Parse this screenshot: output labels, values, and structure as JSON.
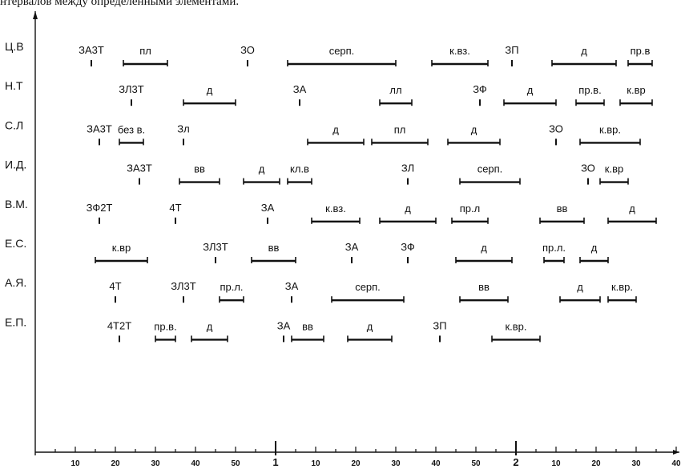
{
  "caption": "нтервалов между определенными элементами.",
  "chart_data": {
    "type": "timeline",
    "title": "",
    "xlabel": "",
    "ylabel": "",
    "x_ticks": [
      {
        "label": "10",
        "x": 10
      },
      {
        "label": "20",
        "x": 20
      },
      {
        "label": "30",
        "x": 30
      },
      {
        "label": "40",
        "x": 40
      },
      {
        "label": "50",
        "x": 50
      },
      {
        "label": "1",
        "x": 60
      },
      {
        "label": "10",
        "x": 70
      },
      {
        "label": "20",
        "x": 80
      },
      {
        "label": "30",
        "x": 90
      },
      {
        "label": "40",
        "x": 100
      },
      {
        "label": "50",
        "x": 110
      },
      {
        "label": "2",
        "x": 120
      },
      {
        "label": "10",
        "x": 130
      },
      {
        "label": "20",
        "x": 140
      },
      {
        "label": "30",
        "x": 150
      },
      {
        "label": "40",
        "x": 160
      }
    ],
    "xlim": [
      0,
      162
    ],
    "rows": [
      {
        "name": "Ц.В",
        "events": [
          {
            "label": "ЗА3Т",
            "x": 14
          },
          {
            "label": "пл",
            "start": 22,
            "end": 33
          },
          {
            "label": "ЗО",
            "x": 53
          },
          {
            "label": "серп.",
            "start": 63,
            "end": 90
          },
          {
            "label": "к.вз.",
            "start": 99,
            "end": 113
          },
          {
            "label": "ЗП",
            "x": 119
          },
          {
            "label": "д",
            "start": 129,
            "end": 145
          },
          {
            "label": "пр.в",
            "start": 148,
            "end": 154
          }
        ]
      },
      {
        "name": "Н.Т",
        "events": [
          {
            "label": "ЗЛ3Т",
            "x": 24
          },
          {
            "label": "д",
            "start": 37,
            "end": 50
          },
          {
            "label": "ЗА",
            "x": 66
          },
          {
            "label": "лл",
            "start": 86,
            "end": 94
          },
          {
            "label": "ЗФ",
            "x": 111
          },
          {
            "label": "д",
            "start": 117,
            "end": 130
          },
          {
            "label": "пр.в.",
            "start": 135,
            "end": 142
          },
          {
            "label": "к.вр",
            "start": 146,
            "end": 154
          }
        ]
      },
      {
        "name": "С.Л",
        "events": [
          {
            "label": "ЗА3Т",
            "x": 16
          },
          {
            "label": "без в.",
            "start": 21,
            "end": 27
          },
          {
            "label": "Зл",
            "x": 37
          },
          {
            "label": "д",
            "start": 68,
            "end": 82
          },
          {
            "label": "пл",
            "start": 84,
            "end": 98
          },
          {
            "label": "д",
            "start": 103,
            "end": 116
          },
          {
            "label": "ЗО",
            "x": 130
          },
          {
            "label": "к.вр.",
            "start": 136,
            "end": 151
          }
        ]
      },
      {
        "name": "И.Д.",
        "events": [
          {
            "label": "ЗА3Т",
            "x": 26
          },
          {
            "label": "вв",
            "start": 36,
            "end": 46
          },
          {
            "label": "д",
            "start": 52,
            "end": 61
          },
          {
            "label": "кл.в",
            "start": 63,
            "end": 69
          },
          {
            "label": "ЗЛ",
            "x": 93
          },
          {
            "label": "серп.",
            "start": 106,
            "end": 121
          },
          {
            "label": "ЗО",
            "x": 138
          },
          {
            "label": "к.вр",
            "start": 141,
            "end": 148
          }
        ]
      },
      {
        "name": "В.М.",
        "events": [
          {
            "label": "ЗФ2Т",
            "x": 16
          },
          {
            "label": "4Т",
            "x": 35
          },
          {
            "label": "ЗА",
            "x": 58
          },
          {
            "label": "к.вз.",
            "start": 69,
            "end": 81
          },
          {
            "label": "д",
            "start": 86,
            "end": 100
          },
          {
            "label": "пр.л",
            "start": 104,
            "end": 113
          },
          {
            "label": "вв",
            "start": 126,
            "end": 137
          },
          {
            "label": "д",
            "start": 143,
            "end": 155
          }
        ]
      },
      {
        "name": "Е.С.",
        "events": [
          {
            "label": "к.вр",
            "start": 15,
            "end": 28
          },
          {
            "label": "ЗЛ3Т",
            "x": 45
          },
          {
            "label": "вв",
            "start": 54,
            "end": 65
          },
          {
            "label": "ЗА",
            "x": 79
          },
          {
            "label": "ЗФ",
            "x": 93
          },
          {
            "label": "д",
            "start": 105,
            "end": 119
          },
          {
            "label": "пр.л.",
            "start": 127,
            "end": 132
          },
          {
            "label": "д",
            "start": 136,
            "end": 143
          }
        ]
      },
      {
        "name": "А.Я.",
        "events": [
          {
            "label": "4Т",
            "x": 20
          },
          {
            "label": "ЗЛ3Т",
            "x": 37
          },
          {
            "label": "пр.л.",
            "start": 46,
            "end": 52
          },
          {
            "label": "ЗА",
            "x": 64
          },
          {
            "label": "серп.",
            "start": 74,
            "end": 92
          },
          {
            "label": "вв",
            "start": 106,
            "end": 118
          },
          {
            "label": "д",
            "start": 131,
            "end": 141
          },
          {
            "label": "к.вр.",
            "start": 143,
            "end": 150
          }
        ]
      },
      {
        "name": "Е.П.",
        "events": [
          {
            "label": "4Т2Т",
            "x": 21
          },
          {
            "label": "пр.в.",
            "start": 30,
            "end": 35
          },
          {
            "label": "д",
            "start": 39,
            "end": 48
          },
          {
            "label": "ЗА",
            "x": 62
          },
          {
            "label": "вв",
            "start": 64,
            "end": 72
          },
          {
            "label": "д",
            "start": 78,
            "end": 89
          },
          {
            "label": "ЗП",
            "x": 101
          },
          {
            "label": "к.вр.",
            "start": 114,
            "end": 126
          }
        ]
      }
    ]
  }
}
